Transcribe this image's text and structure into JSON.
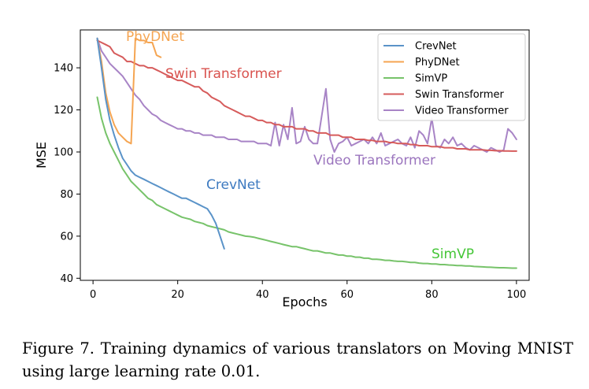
{
  "chart_data": {
    "type": "line",
    "xlabel": "Epochs",
    "ylabel": "MSE",
    "xlim": [
      -3,
      103
    ],
    "ylim": [
      39,
      158
    ],
    "xticks": [
      0,
      20,
      40,
      60,
      80,
      100
    ],
    "yticks": [
      40,
      60,
      80,
      100,
      120,
      140
    ],
    "legend_position": "top-right",
    "series": [
      {
        "name": "CrevNet",
        "color": "#5a93c8",
        "annotation": "CrevNet",
        "annotation_color": "#3d7ac0",
        "x": [
          1,
          2,
          3,
          4,
          5,
          6,
          7,
          8,
          9,
          10,
          11,
          12,
          13,
          14,
          15,
          16,
          17,
          18,
          19,
          20,
          21,
          22,
          23,
          24,
          25,
          26,
          27,
          28,
          29,
          30,
          31
        ],
        "y": [
          154,
          140,
          125,
          115,
          108,
          102,
          97,
          94,
          91,
          89,
          88,
          87,
          86,
          85,
          84,
          83,
          82,
          81,
          80,
          79,
          78,
          78,
          77,
          76,
          75,
          74,
          73,
          70,
          66,
          60,
          54
        ]
      },
      {
        "name": "PhyDNet",
        "color": "#f5a552",
        "annotation": "PhyDNet",
        "annotation_color": "#f5a552",
        "x": [
          1,
          2,
          3,
          4,
          5,
          6,
          7,
          8,
          9,
          10,
          11,
          12,
          13,
          14,
          15,
          16
        ],
        "y": [
          154,
          143,
          128,
          119,
          113,
          109,
          107,
          105,
          104,
          154,
          153,
          153,
          152,
          152,
          146,
          145
        ]
      },
      {
        "name": "SimVP",
        "color": "#77c36a",
        "annotation": "SimVP",
        "annotation_color": "#44c636",
        "x": [
          1,
          2,
          3,
          4,
          5,
          6,
          7,
          8,
          9,
          10,
          11,
          12,
          13,
          14,
          15,
          16,
          17,
          18,
          19,
          20,
          21,
          22,
          23,
          24,
          25,
          26,
          27,
          28,
          29,
          30,
          31,
          32,
          33,
          34,
          35,
          36,
          37,
          38,
          39,
          40,
          41,
          42,
          43,
          44,
          45,
          46,
          47,
          48,
          49,
          50,
          51,
          52,
          53,
          54,
          55,
          56,
          57,
          58,
          59,
          60,
          61,
          62,
          63,
          64,
          65,
          66,
          67,
          68,
          69,
          70,
          71,
          72,
          73,
          74,
          75,
          76,
          77,
          78,
          79,
          80,
          81,
          82,
          83,
          84,
          85,
          86,
          87,
          88,
          89,
          90,
          91,
          92,
          93,
          94,
          95,
          96,
          97,
          98,
          99,
          100
        ],
        "y": [
          126,
          116,
          109,
          104,
          100,
          96,
          92,
          89,
          86,
          84,
          82,
          80,
          78,
          77,
          75,
          74,
          73,
          72,
          71,
          70,
          69,
          68.5,
          68,
          67,
          66.5,
          66,
          65,
          64.5,
          64,
          63.5,
          63,
          62,
          61.5,
          61,
          60.5,
          60,
          59.8,
          59.5,
          59,
          58.5,
          58,
          57.5,
          57,
          56.5,
          56,
          55.5,
          55,
          55,
          54.5,
          54,
          53.5,
          53,
          53,
          52.5,
          52,
          52,
          51.5,
          51,
          51,
          50.5,
          50.5,
          50,
          50,
          49.5,
          49.5,
          49,
          49,
          48.8,
          48.5,
          48.5,
          48.2,
          48,
          48,
          47.8,
          47.5,
          47.5,
          47.2,
          47,
          47,
          46.8,
          46.8,
          46.5,
          46.5,
          46.3,
          46.2,
          46,
          46,
          45.8,
          45.8,
          45.6,
          45.5,
          45.4,
          45.3,
          45.2,
          45.1,
          45,
          45,
          44.9,
          44.8,
          44.8
        ]
      },
      {
        "name": "Swin Transformer",
        "color": "#d65b5b",
        "annotation": "Swin Transformer",
        "annotation_color": "#d9534f",
        "x": [
          1,
          2,
          3,
          4,
          5,
          6,
          7,
          8,
          9,
          10,
          11,
          12,
          13,
          14,
          15,
          16,
          17,
          18,
          19,
          20,
          21,
          22,
          23,
          24,
          25,
          26,
          27,
          28,
          29,
          30,
          31,
          32,
          33,
          34,
          35,
          36,
          37,
          38,
          39,
          40,
          41,
          42,
          43,
          44,
          45,
          46,
          47,
          48,
          49,
          50,
          51,
          52,
          53,
          54,
          55,
          56,
          57,
          58,
          59,
          60,
          61,
          62,
          63,
          64,
          65,
          66,
          67,
          68,
          69,
          70,
          71,
          72,
          73,
          74,
          75,
          76,
          77,
          78,
          79,
          80,
          81,
          82,
          83,
          84,
          85,
          86,
          87,
          88,
          89,
          90,
          91,
          92,
          93,
          94,
          95,
          96,
          97,
          98,
          99,
          100
        ],
        "y": [
          153,
          152,
          151,
          150,
          147,
          146,
          145,
          143,
          143,
          142,
          141,
          141,
          140,
          140,
          139,
          138,
          137,
          136,
          135,
          134,
          134,
          133,
          132,
          131,
          131,
          129,
          128,
          126,
          125,
          124,
          122,
          121,
          120,
          119,
          118,
          117,
          117,
          116,
          115,
          115,
          114,
          114,
          113,
          113,
          112,
          112,
          112,
          111,
          111,
          111,
          110,
          110,
          109,
          109,
          109,
          108,
          108,
          108,
          107,
          107,
          107,
          106,
          106,
          106,
          105.5,
          105.5,
          105,
          105,
          105,
          104.5,
          104.5,
          104,
          104,
          104,
          103.5,
          103.5,
          103,
          103,
          103,
          102.5,
          102.5,
          102.5,
          102,
          102,
          102,
          101.5,
          101.5,
          101.5,
          101,
          101,
          101,
          101,
          100.8,
          100.8,
          100.6,
          100.6,
          100.5,
          100.5,
          100.4,
          100.4
        ]
      },
      {
        "name": "Video Transformer",
        "color": "#a884c6",
        "annotation": "Video Transformer",
        "annotation_color": "#9b75be",
        "x": [
          1,
          2,
          3,
          4,
          5,
          6,
          7,
          8,
          9,
          10,
          11,
          12,
          13,
          14,
          15,
          16,
          17,
          18,
          19,
          20,
          21,
          22,
          23,
          24,
          25,
          26,
          27,
          28,
          29,
          30,
          31,
          32,
          33,
          34,
          35,
          36,
          37,
          38,
          39,
          40,
          41,
          42,
          43,
          44,
          45,
          46,
          47,
          48,
          49,
          50,
          51,
          52,
          53,
          54,
          55,
          56,
          57,
          58,
          59,
          60,
          61,
          62,
          63,
          64,
          65,
          66,
          67,
          68,
          69,
          70,
          71,
          72,
          73,
          74,
          75,
          76,
          77,
          78,
          79,
          80,
          81,
          82,
          83,
          84,
          85,
          86,
          87,
          88,
          89,
          90,
          91,
          92,
          93,
          94,
          95,
          96,
          97,
          98,
          99,
          100
        ],
        "y": [
          154,
          148,
          145,
          142,
          140,
          138,
          136,
          133,
          130,
          127,
          125,
          122,
          120,
          118,
          117,
          115,
          114,
          113,
          112,
          111,
          111,
          110,
          110,
          109,
          109,
          108,
          108,
          108,
          107,
          107,
          107,
          106,
          106,
          106,
          105,
          105,
          105,
          105,
          104,
          104,
          104,
          103,
          114,
          103,
          113,
          106,
          121,
          104,
          105,
          112,
          106,
          104,
          104,
          117,
          130,
          106,
          100,
          104,
          105,
          107,
          103,
          104,
          105,
          106,
          104,
          107,
          104,
          109,
          103,
          104,
          105,
          106,
          104,
          103,
          107,
          102,
          110,
          108,
          104,
          116,
          103,
          102,
          106,
          104,
          107,
          103,
          104,
          102,
          101,
          103,
          102,
          101,
          100,
          102,
          101,
          100,
          101,
          111,
          109,
          106
        ]
      }
    ]
  },
  "caption": "Figure 7.  Training dynamics of various translators on Moving MNIST using large learning rate 0.01."
}
